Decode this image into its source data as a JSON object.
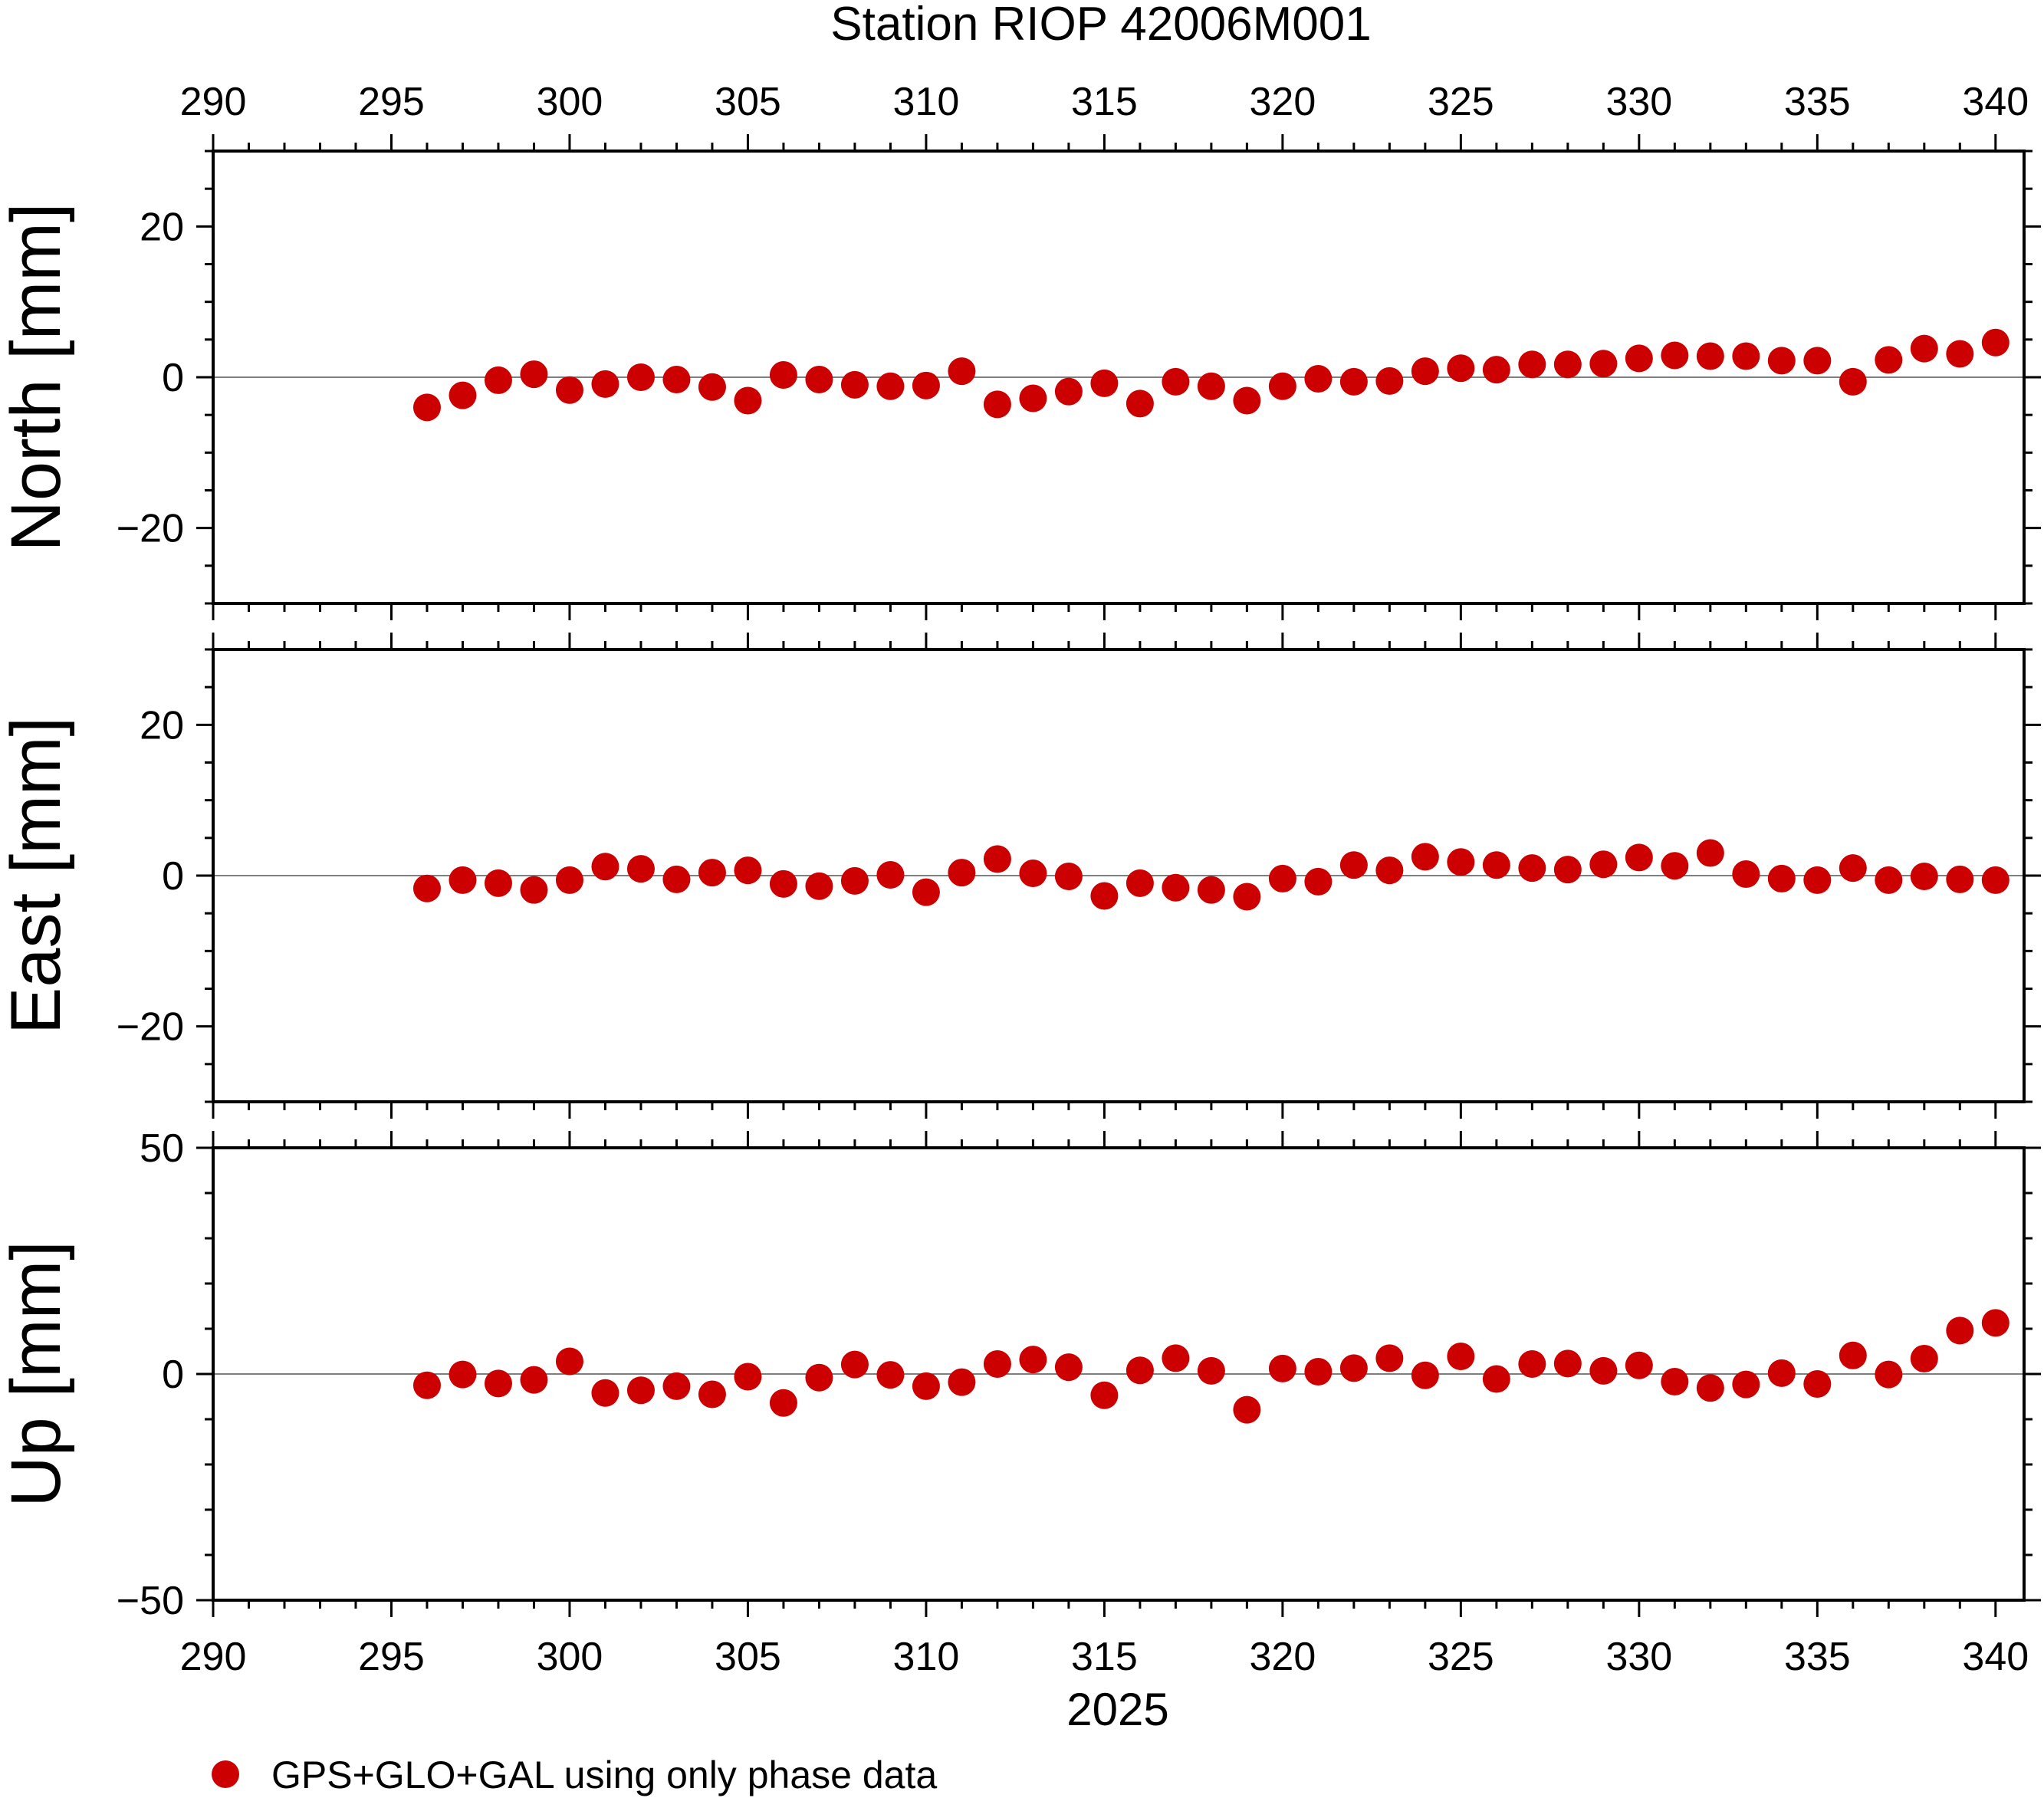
{
  "chart_data": {
    "type": "scatter",
    "title": "Station RIOP 42006M001",
    "xlabel": "2025",
    "xlim": [
      290,
      340.8
    ],
    "x_ticks": [
      290,
      295,
      300,
      305,
      310,
      315,
      320,
      325,
      330,
      335,
      340
    ],
    "x_tick_labels": [
      "290",
      "295",
      "300",
      "305",
      "310",
      "315",
      "320",
      "325",
      "330",
      "335",
      "340"
    ],
    "x": [
      296,
      297,
      298,
      299,
      300,
      301,
      302,
      303,
      304,
      305,
      306,
      307,
      308,
      309,
      310,
      311,
      312,
      313,
      314,
      315,
      316,
      317,
      318,
      319,
      320,
      321,
      322,
      323,
      324,
      325,
      326,
      327,
      328,
      329,
      330,
      331,
      332,
      333,
      334,
      335,
      336,
      337,
      338,
      339,
      340
    ],
    "marker_color": "#cc0000",
    "legend": {
      "position": "bottom-left",
      "entries": [
        "GPS+GLO+GAL using only phase data"
      ]
    },
    "panels": [
      {
        "ylabel": "North [mm]",
        "ylim": [
          -30,
          30
        ],
        "y_ticks": [
          -20,
          0,
          20
        ],
        "y_tick_labels": [
          "−20",
          "0",
          "20"
        ],
        "values": [
          -4,
          -2.4,
          -0.4,
          0.4,
          -1.7,
          -0.9,
          0,
          -0.3,
          -1.3,
          -3.1,
          0.3,
          -0.3,
          -1,
          -1.2,
          -1.1,
          0.8,
          -3.6,
          -2.8,
          -1.9,
          -0.8,
          -3.5,
          -0.6,
          -1.2,
          -3.1,
          -1.2,
          -0.2,
          -0.6,
          -0.5,
          0.8,
          1.2,
          1,
          1.7,
          1.7,
          1.8,
          2.5,
          2.9,
          2.8,
          2.8,
          2.2,
          2.2,
          -0.6,
          2.3,
          3.8,
          3.1,
          4.6
        ]
      },
      {
        "ylabel": "East [mm]",
        "ylim": [
          -30,
          30
        ],
        "y_ticks": [
          -20,
          0,
          20
        ],
        "y_tick_labels": [
          "−20",
          "0",
          "20"
        ],
        "values": [
          -1.7,
          -0.6,
          -1,
          -1.9,
          -0.6,
          1.2,
          0.9,
          -0.5,
          0.4,
          0.7,
          -1.1,
          -1.4,
          -0.7,
          0.1,
          -2.2,
          0.4,
          2.2,
          0.3,
          -0.1,
          -2.7,
          -1,
          -1.6,
          -1.9,
          -2.8,
          -0.4,
          -0.8,
          1.4,
          0.7,
          2.5,
          1.8,
          1.4,
          1,
          0.8,
          1.5,
          2.4,
          1.3,
          3,
          0.2,
          -0.4,
          -0.6,
          1,
          -0.6,
          -0.1,
          -0.5,
          -0.6
        ]
      },
      {
        "ylabel": "Up [mm]",
        "ylim": [
          -50,
          50
        ],
        "y_ticks": [
          -50,
          0,
          50
        ],
        "y_tick_labels": [
          "−50",
          "0",
          "50"
        ],
        "values": [
          -2.5,
          -0.1,
          -2.1,
          -1.3,
          2.8,
          -4.2,
          -3.6,
          -2.7,
          -4.5,
          -0.6,
          -6.4,
          -0.8,
          2.1,
          -0.2,
          -2.7,
          -1.8,
          2.2,
          3.2,
          1.5,
          -4.7,
          0.8,
          3.5,
          0.7,
          -7.9,
          1.2,
          0.5,
          1.3,
          3.5,
          -0.3,
          3.9,
          -1.1,
          2.2,
          2.3,
          0.7,
          1.9,
          -1.7,
          -3.1,
          -2.3,
          0.2,
          -2.2,
          4.1,
          -0.1,
          3.4,
          9.6,
          11.3
        ]
      }
    ]
  }
}
